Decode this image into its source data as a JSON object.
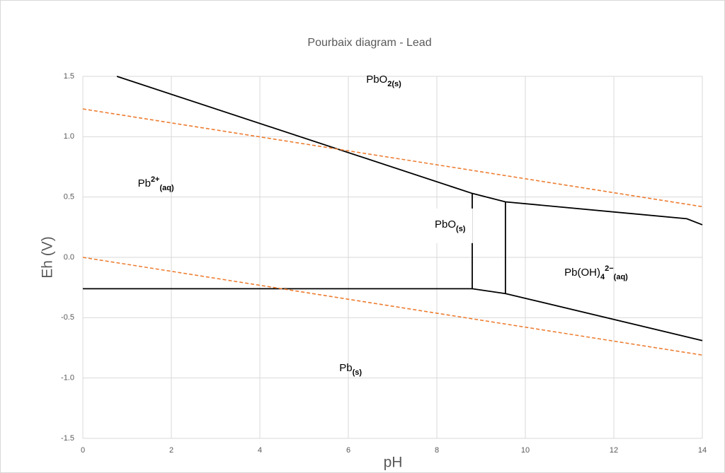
{
  "chart_data": {
    "type": "line",
    "title": "Pourbaix diagram - Lead",
    "x_label": "pH",
    "y_label": "Eh (V)",
    "xlim": [
      0,
      14
    ],
    "xticks": [
      0,
      2,
      4,
      6,
      8,
      10,
      12,
      14
    ],
    "ylim": [
      -1.5,
      1.5
    ],
    "yticks": [
      -1.5,
      {
        "value": -1,
        "label": "-1.0"
      },
      -0.5,
      {
        "value": 0,
        "label": "0.0"
      },
      0.5,
      {
        "value": 1,
        "label": "1.0"
      },
      1.5
    ],
    "grid": true,
    "series": [
      {
        "color": "#000000",
        "dash": false,
        "x": [
          0.77,
          8.8,
          9.55,
          13.65,
          14
        ],
        "y": [
          1.5,
          0.53,
          0.46,
          0.32,
          0.27
        ]
      },
      {
        "color": "#000000",
        "dash": false,
        "x": [
          0,
          8.8,
          9.55,
          14
        ],
        "y": [
          -0.26,
          -0.26,
          -0.3,
          -0.69
        ]
      },
      {
        "color": "#000000",
        "dash": false,
        "x": [
          8.8,
          8.8
        ],
        "y": [
          0.53,
          -0.26
        ]
      },
      {
        "color": "#000000",
        "dash": false,
        "x": [
          9.55,
          9.55
        ],
        "y": [
          0.46,
          -0.3
        ]
      },
      {
        "color": "#ed7d31",
        "dash": true,
        "x": [
          0,
          14
        ],
        "y": [
          1.23,
          0.42
        ]
      },
      {
        "color": "#ed7d31",
        "dash": true,
        "x": [
          0,
          14
        ],
        "y": [
          0,
          -0.81
        ]
      }
    ],
    "annotations": [
      {
        "x": 6.8,
        "y": 1.47,
        "parts": [
          {
            "text": "PbO"
          },
          {
            "text": "2(s)",
            "shift": "sub"
          }
        ]
      },
      {
        "x": 1.65,
        "y": 0.61,
        "parts": [
          {
            "text": "Pb"
          },
          {
            "text": "2+",
            "shift": "super"
          },
          {
            "text": "(aq)",
            "shift": "sub"
          }
        ]
      },
      {
        "x": 8.3,
        "y": 0.27,
        "background": "#ffffff",
        "parts": [
          {
            "text": "PbO"
          },
          {
            "text": "(s)",
            "shift": "sub"
          }
        ]
      },
      {
        "x": 11.6,
        "y": -0.13,
        "parts": [
          {
            "text": "Pb(OH)"
          },
          {
            "text": "4",
            "shift": "sub"
          },
          {
            "text": "2−",
            "shift": "super"
          },
          {
            "text": "(aq)",
            "shift": "sub"
          }
        ]
      },
      {
        "x": 6.05,
        "y": -0.92,
        "parts": [
          {
            "text": "Pb"
          },
          {
            "text": "(s)",
            "shift": "sub"
          }
        ]
      }
    ]
  }
}
